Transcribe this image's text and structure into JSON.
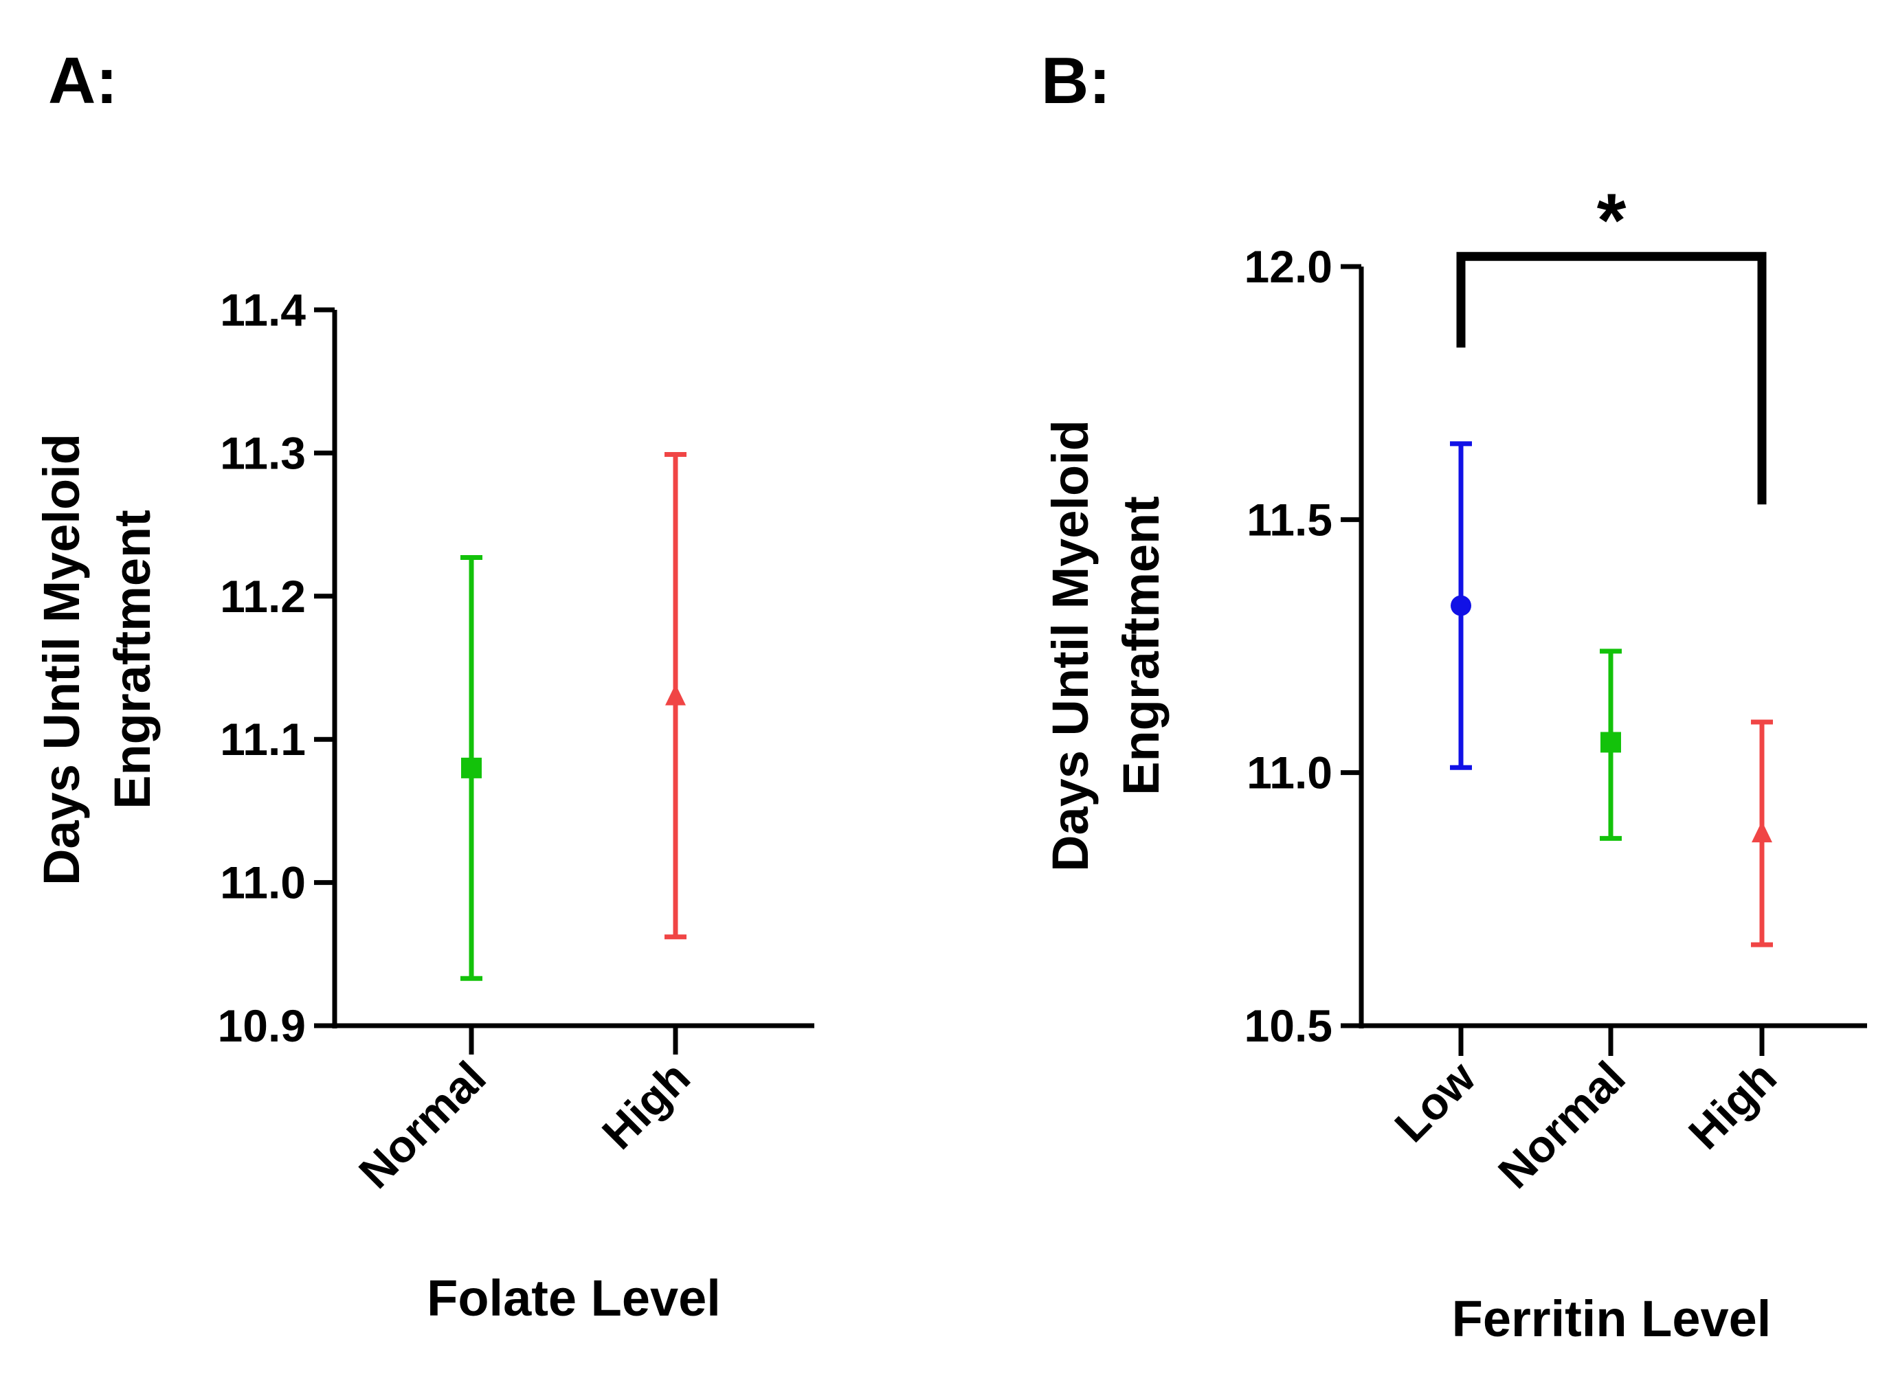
{
  "chart_data": [
    {
      "panel_label": "A:",
      "type": "scatter",
      "title": "",
      "xlabel": "Folate Level",
      "ylabel_lines": [
        "Days Until Myeloid",
        "Engraftment"
      ],
      "ylim": [
        10.9,
        11.4
      ],
      "yticks": [
        10.9,
        11.0,
        11.1,
        11.2,
        11.3,
        11.4
      ],
      "ytick_labels": [
        "10.9",
        "11.0",
        "11.1",
        "11.2",
        "11.3",
        "11.4"
      ],
      "categories": [
        "Normal",
        "High"
      ],
      "points": [
        {
          "category": "Normal",
          "mean": 11.08,
          "lower": 10.933,
          "upper": 11.227,
          "marker": "square",
          "color": "#13c20a"
        },
        {
          "category": "High",
          "mean": 11.13,
          "lower": 10.962,
          "upper": 11.299,
          "marker": "triangle",
          "color": "#f04545"
        }
      ],
      "grid": false
    },
    {
      "panel_label": "B:",
      "type": "scatter",
      "title": "",
      "xlabel": "Ferritin Level",
      "ylabel_lines": [
        "Days Until Myeloid",
        "Engraftment"
      ],
      "ylim": [
        10.5,
        12.0
      ],
      "yticks": [
        10.5,
        11.0,
        11.5,
        12.0
      ],
      "ytick_labels": [
        "10.5",
        "11.0",
        "11.5",
        "12.0"
      ],
      "categories": [
        "Low",
        "Normal",
        "High"
      ],
      "points": [
        {
          "category": "Low",
          "mean": 11.33,
          "lower": 11.01,
          "upper": 11.65,
          "marker": "circle",
          "color": "#1111e6"
        },
        {
          "category": "Normal",
          "mean": 11.06,
          "lower": 10.87,
          "upper": 11.24,
          "marker": "square",
          "color": "#13c20a"
        },
        {
          "category": "High",
          "mean": 10.88,
          "lower": 10.66,
          "upper": 11.1,
          "marker": "triangle",
          "color": "#f04545"
        }
      ],
      "significance": {
        "from": "Low",
        "to": "High",
        "label": "*",
        "bracket_level": 12.02,
        "left_drop_to": 11.84,
        "right_drop_to": 11.53
      },
      "grid": false
    }
  ]
}
